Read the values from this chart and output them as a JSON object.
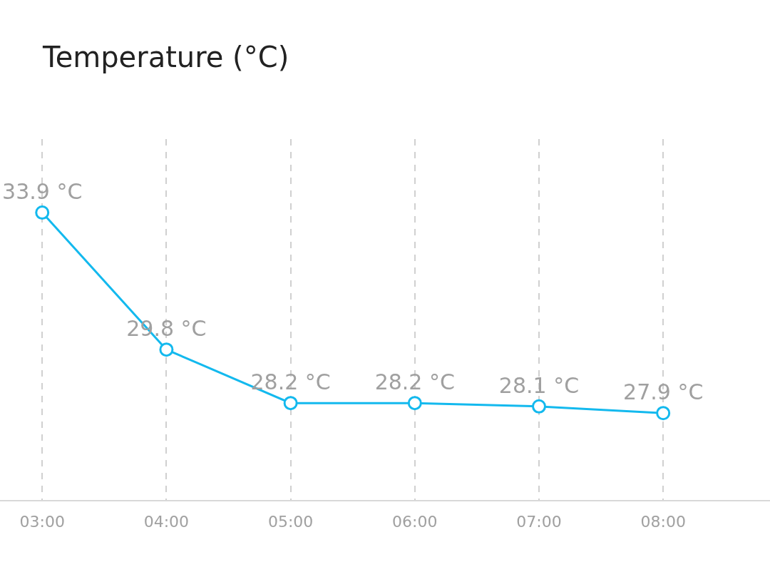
{
  "chart_data": {
    "type": "line",
    "title": "Temperature (°C)",
    "x": [
      3,
      4,
      5,
      6,
      7,
      8
    ],
    "series": [
      {
        "color": "#13b9ee",
        "values": [
          33.9,
          29.8,
          28.2,
          28.2,
          28.1,
          27.9
        ],
        "value_labels": [
          "33.9 °C",
          "29.8 °C",
          "28.2 °C",
          "28.2 °C",
          "28.1 °C",
          "27.9 °C"
        ]
      }
    ],
    "xlim": [
      2.66,
      8.86
    ],
    "xticks": [
      {
        "value": 3,
        "label": "03:00"
      },
      {
        "value": 4,
        "label": "04:00"
      },
      {
        "value": 5,
        "label": "05:00"
      },
      {
        "value": 6,
        "label": "06:00"
      },
      {
        "value": 7,
        "label": "07:00"
      },
      {
        "value": 8,
        "label": "08:00"
      }
    ],
    "ylim": [
      25.3,
      36.1
    ],
    "tick_labels": "x",
    "grid": "x",
    "marker": "circle",
    "line_style": "solid"
  }
}
